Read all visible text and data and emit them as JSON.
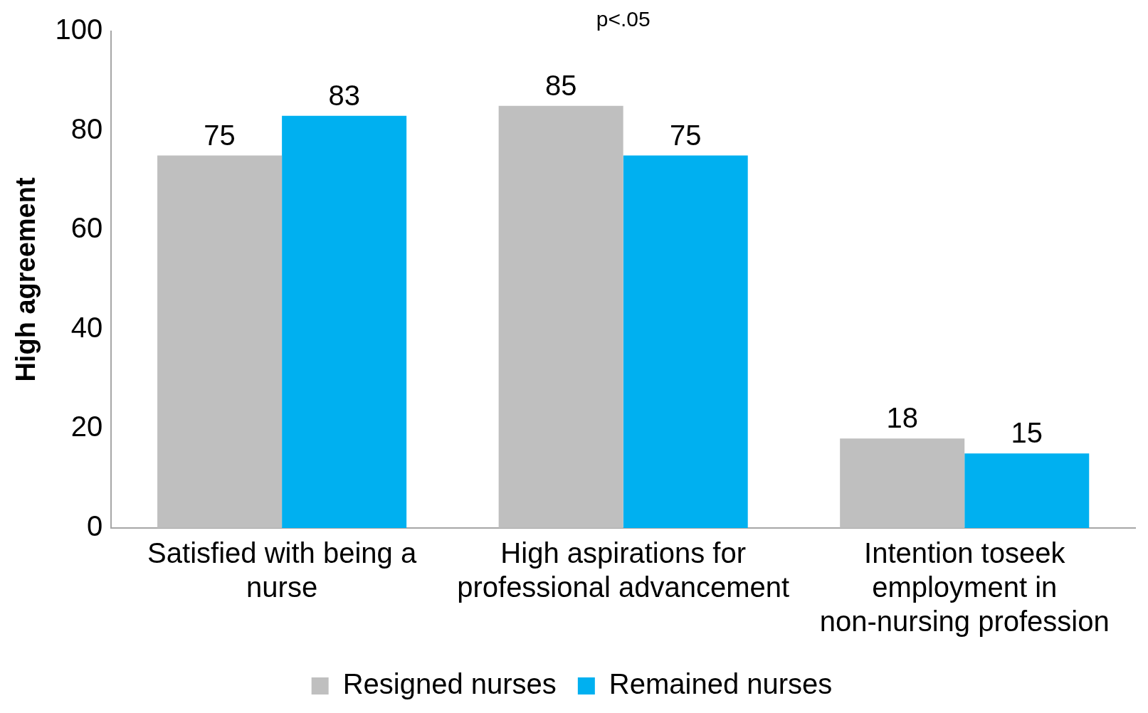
{
  "chart_data": {
    "type": "bar",
    "ylabel": "High agreement",
    "categories": [
      "Satisfied with being a nurse",
      "High aspirations for professional advancement",
      "Intention toseek employment in non-nursing profession"
    ],
    "series": [
      {
        "name": "Resigned nurses",
        "color": "#bfbfbf",
        "values": [
          75,
          85,
          18
        ]
      },
      {
        "name": "Remained nurses",
        "color": "#00b0f0",
        "values": [
          83,
          75,
          15
        ]
      }
    ],
    "ylim": [
      0,
      100
    ],
    "yticks": [
      0,
      20,
      40,
      60,
      80,
      100
    ],
    "grid": false,
    "legend": "bottom",
    "data_labels": true,
    "annotations": [
      "p<.05"
    ]
  }
}
